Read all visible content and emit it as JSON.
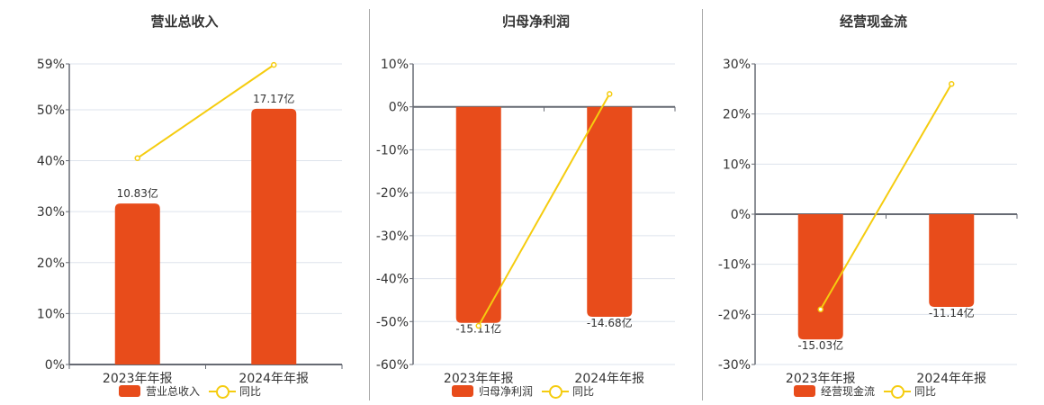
{
  "colors": {
    "bar": "#e84c1b",
    "line": "#f5cc0f",
    "grid": "#dde3ec",
    "axis": "#666a73"
  },
  "chart_data": [
    {
      "type": "bar+line",
      "title": "营业总收入",
      "categories": [
        "2023年年报",
        "2024年年报"
      ],
      "series": [
        {
          "name": "营业总收入",
          "type": "bar",
          "values": [
            10.83,
            17.17
          ],
          "unit": "亿",
          "labels": [
            "10.83亿",
            "17.17亿"
          ],
          "plotted_pct": [
            31.6,
            50.2
          ]
        },
        {
          "name": "同比",
          "type": "line",
          "values": [
            40.5,
            58.8
          ],
          "unit": "%"
        }
      ],
      "yticks": [
        "0%",
        "10%",
        "20%",
        "30%",
        "40%",
        "50%",
        "59%"
      ],
      "ylim": [
        0,
        59
      ],
      "grid": true,
      "legend_position": "bottom"
    },
    {
      "type": "bar+line",
      "title": "归母净利润",
      "categories": [
        "2023年年报",
        "2024年年报"
      ],
      "series": [
        {
          "name": "归母净利润",
          "type": "bar",
          "values": [
            -15.11,
            -14.68
          ],
          "unit": "亿",
          "labels": [
            "-15.11亿",
            "-14.68亿"
          ],
          "plotted_pct": [
            -50.3,
            -48.9
          ]
        },
        {
          "name": "同比",
          "type": "line",
          "values": [
            -51.0,
            3.0
          ],
          "unit": "%"
        }
      ],
      "yticks": [
        "-60%",
        "-50%",
        "-40%",
        "-30%",
        "-20%",
        "-10%",
        "0%",
        "10%"
      ],
      "ylim": [
        -60,
        10
      ],
      "grid": true,
      "legend_position": "bottom"
    },
    {
      "type": "bar+line",
      "title": "经营现金流",
      "categories": [
        "2023年年报",
        "2024年年报"
      ],
      "series": [
        {
          "name": "经营现金流",
          "type": "bar",
          "values": [
            -15.03,
            -11.14
          ],
          "unit": "亿",
          "labels": [
            "-15.03亿",
            "-11.14亿"
          ],
          "plotted_pct": [
            -25.0,
            -18.5
          ]
        },
        {
          "name": "同比",
          "type": "line",
          "values": [
            -19.0,
            26.0
          ],
          "unit": "%"
        }
      ],
      "yticks": [
        "-30%",
        "-20%",
        "-10%",
        "0%",
        "10%",
        "20%",
        "30%"
      ],
      "ylim": [
        -30,
        30
      ],
      "grid": true,
      "legend_position": "bottom"
    }
  ],
  "panels": [
    {
      "title": "营业总收入",
      "legend_bar": "营业总收入",
      "legend_line": "同比"
    },
    {
      "title": "归母净利润",
      "legend_bar": "归母净利润",
      "legend_line": "同比"
    },
    {
      "title": "经营现金流",
      "legend_bar": "经营现金流",
      "legend_line": "同比"
    }
  ]
}
